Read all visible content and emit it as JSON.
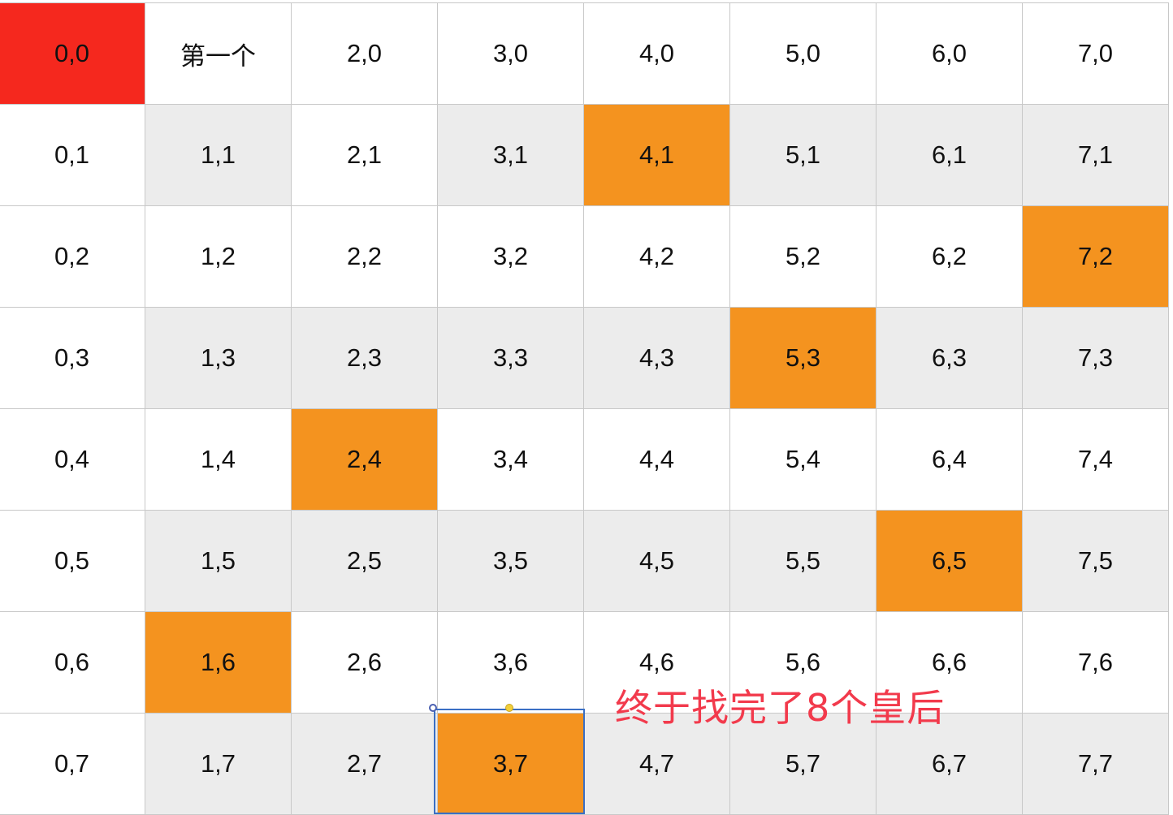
{
  "board": {
    "rows": [
      [
        "0,0",
        "第一个",
        "2,0",
        "3,0",
        "4,0",
        "5,0",
        "6,0",
        "7,0"
      ],
      [
        "0,1",
        "1,1",
        "2,1",
        "3,1",
        "4,1",
        "5,1",
        "6,1",
        "7,1"
      ],
      [
        "0,2",
        "1,2",
        "2,2",
        "3,2",
        "4,2",
        "5,2",
        "6,2",
        "7,2"
      ],
      [
        "0,3",
        "1,3",
        "2,3",
        "3,3",
        "4,3",
        "5,3",
        "6,3",
        "7,3"
      ],
      [
        "0,4",
        "1,4",
        "2,4",
        "3,4",
        "4,4",
        "5,4",
        "6,4",
        "7,4"
      ],
      [
        "0,5",
        "1,5",
        "2,5",
        "3,5",
        "4,5",
        "5,5",
        "6,5",
        "7,5"
      ],
      [
        "0,6",
        "1,6",
        "2,6",
        "3,6",
        "4,6",
        "5,6",
        "6,6",
        "7,6"
      ],
      [
        "0,7",
        "1,7",
        "2,7",
        "3,7",
        "4,7",
        "5,7",
        "6,7",
        "7,7"
      ]
    ],
    "styles": [
      [
        "start",
        "white",
        "white",
        "white",
        "white",
        "white",
        "white",
        "white"
      ],
      [
        "white",
        "gray",
        "white",
        "gray",
        "queen",
        "gray",
        "gray",
        "gray"
      ],
      [
        "white",
        "white",
        "white",
        "white",
        "white",
        "white",
        "white",
        "queen"
      ],
      [
        "white",
        "gray",
        "gray",
        "gray",
        "gray",
        "queen",
        "gray",
        "gray"
      ],
      [
        "white",
        "white",
        "queen",
        "white",
        "white",
        "white",
        "white",
        "white"
      ],
      [
        "white",
        "gray",
        "gray",
        "gray",
        "gray",
        "gray",
        "queen",
        "gray"
      ],
      [
        "white",
        "queen",
        "white",
        "white",
        "white",
        "white",
        "white",
        "white"
      ],
      [
        "white",
        "gray",
        "gray",
        "queen",
        "gray",
        "gray",
        "gray",
        "gray"
      ]
    ],
    "colors": {
      "start": "#f5281e",
      "queen": "#f4931f",
      "gray": "#ececec",
      "white": "#ffffff",
      "grid_line": "#c8c8c8"
    }
  },
  "annotation": {
    "text": "终于找完了8个皇后",
    "color": "#f23a4c"
  },
  "selection": {
    "cell": "3,7",
    "color": "#3a6fc4"
  }
}
